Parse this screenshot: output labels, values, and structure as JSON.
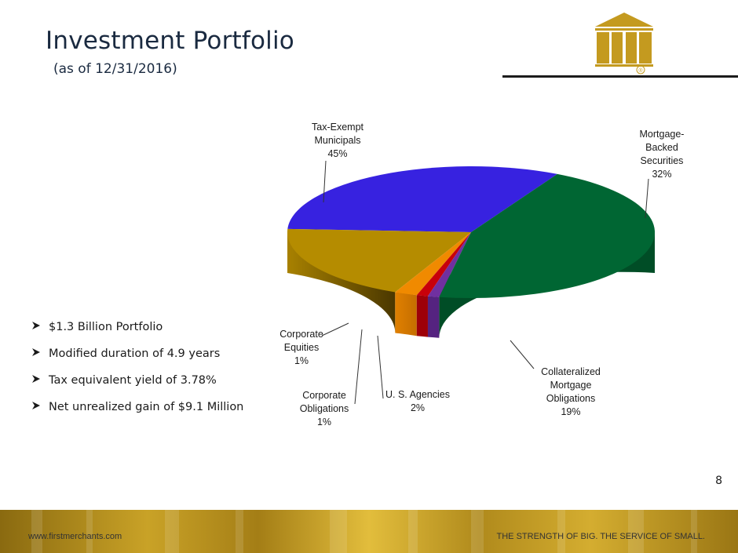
{
  "slide": {
    "title": "Investment Portfolio",
    "subtitle": "(as of 12/31/2016)",
    "page_number": "8",
    "bullets": [
      "$1.3 Billion Portfolio",
      "Modified duration of 4.9 years",
      "Tax equivalent yield of 3.78%",
      "Net unrealized gain of $9.1 Million"
    ],
    "footer_url": "www.firstmerchants.com",
    "footer_tagline": "THE STRENGTH OF BIG. THE SERVICE OF SMALL.",
    "logo_mark": "®",
    "icons": {
      "bullet": "arrow-bullet-icon",
      "logo": "building-logo-icon"
    },
    "colors": {
      "title": "#1a2a40",
      "logo_gold": "#c49a1f",
      "footer_gold": "#c9a227"
    }
  },
  "chart_data": {
    "type": "pie",
    "style": "3d",
    "labels": [
      "Mortgage-Backed Securities",
      "Collateralized Mortgage Obligations",
      "U. S. Agencies",
      "Corporate Obligations",
      "Corporate Equities",
      "Tax-Exempt Municipals"
    ],
    "values": [
      32,
      19,
      2,
      1,
      1,
      45
    ],
    "value_labels": [
      "32%",
      "19%",
      "2%",
      "1%",
      "1%",
      "45%"
    ],
    "label_lines": [
      [
        "Mortgage-",
        "Backed",
        "Securities"
      ],
      [
        "Collateralized",
        "Mortgage",
        "Obligations"
      ],
      [
        "U. S. Agencies"
      ],
      [
        "Corporate",
        "Obligations"
      ],
      [
        "Corporate",
        "Equities"
      ],
      [
        "Tax-Exempt",
        "Municipals"
      ]
    ],
    "colors": [
      "#3722e0",
      "#b58c00",
      "#f08a00",
      "#c8000a",
      "#7030a0",
      "#006633"
    ],
    "legend": "none"
  }
}
